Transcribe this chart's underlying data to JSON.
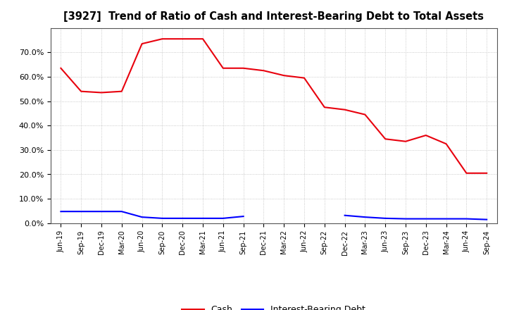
{
  "title": "[3927]  Trend of Ratio of Cash and Interest-Bearing Debt to Total Assets",
  "x_labels": [
    "Jun-19",
    "Sep-19",
    "Dec-19",
    "Mar-20",
    "Jun-20",
    "Sep-20",
    "Dec-20",
    "Mar-21",
    "Jun-21",
    "Sep-21",
    "Dec-21",
    "Mar-22",
    "Jun-22",
    "Sep-22",
    "Dec-22",
    "Mar-23",
    "Jun-23",
    "Sep-23",
    "Dec-23",
    "Mar-24",
    "Jun-24",
    "Sep-24"
  ],
  "cash": [
    63.5,
    54.0,
    53.5,
    54.0,
    73.5,
    75.5,
    75.5,
    75.5,
    63.5,
    63.5,
    62.5,
    60.5,
    59.5,
    47.5,
    46.5,
    44.5,
    34.5,
    33.5,
    36.0,
    32.5,
    20.5,
    20.5
  ],
  "ibd": [
    4.8,
    4.8,
    4.8,
    4.8,
    2.5,
    2.0,
    2.0,
    2.0,
    2.0,
    2.8,
    null,
    null,
    null,
    null,
    3.2,
    2.5,
    2.0,
    1.8,
    1.8,
    1.8,
    1.8,
    1.5
  ],
  "cash_color": "#e8000d",
  "ibd_color": "#0000ff",
  "background_color": "#ffffff",
  "grid_color": "#bbbbbb",
  "ylim": [
    0,
    80
  ],
  "yticks": [
    0,
    10,
    20,
    30,
    40,
    50,
    60,
    70
  ],
  "ytick_labels": [
    "0.0%",
    "10.0%",
    "20.0%",
    "30.0%",
    "40.0%",
    "50.0%",
    "60.0%",
    "70.0%"
  ],
  "legend_labels": [
    "Cash",
    "Interest-Bearing Debt"
  ]
}
